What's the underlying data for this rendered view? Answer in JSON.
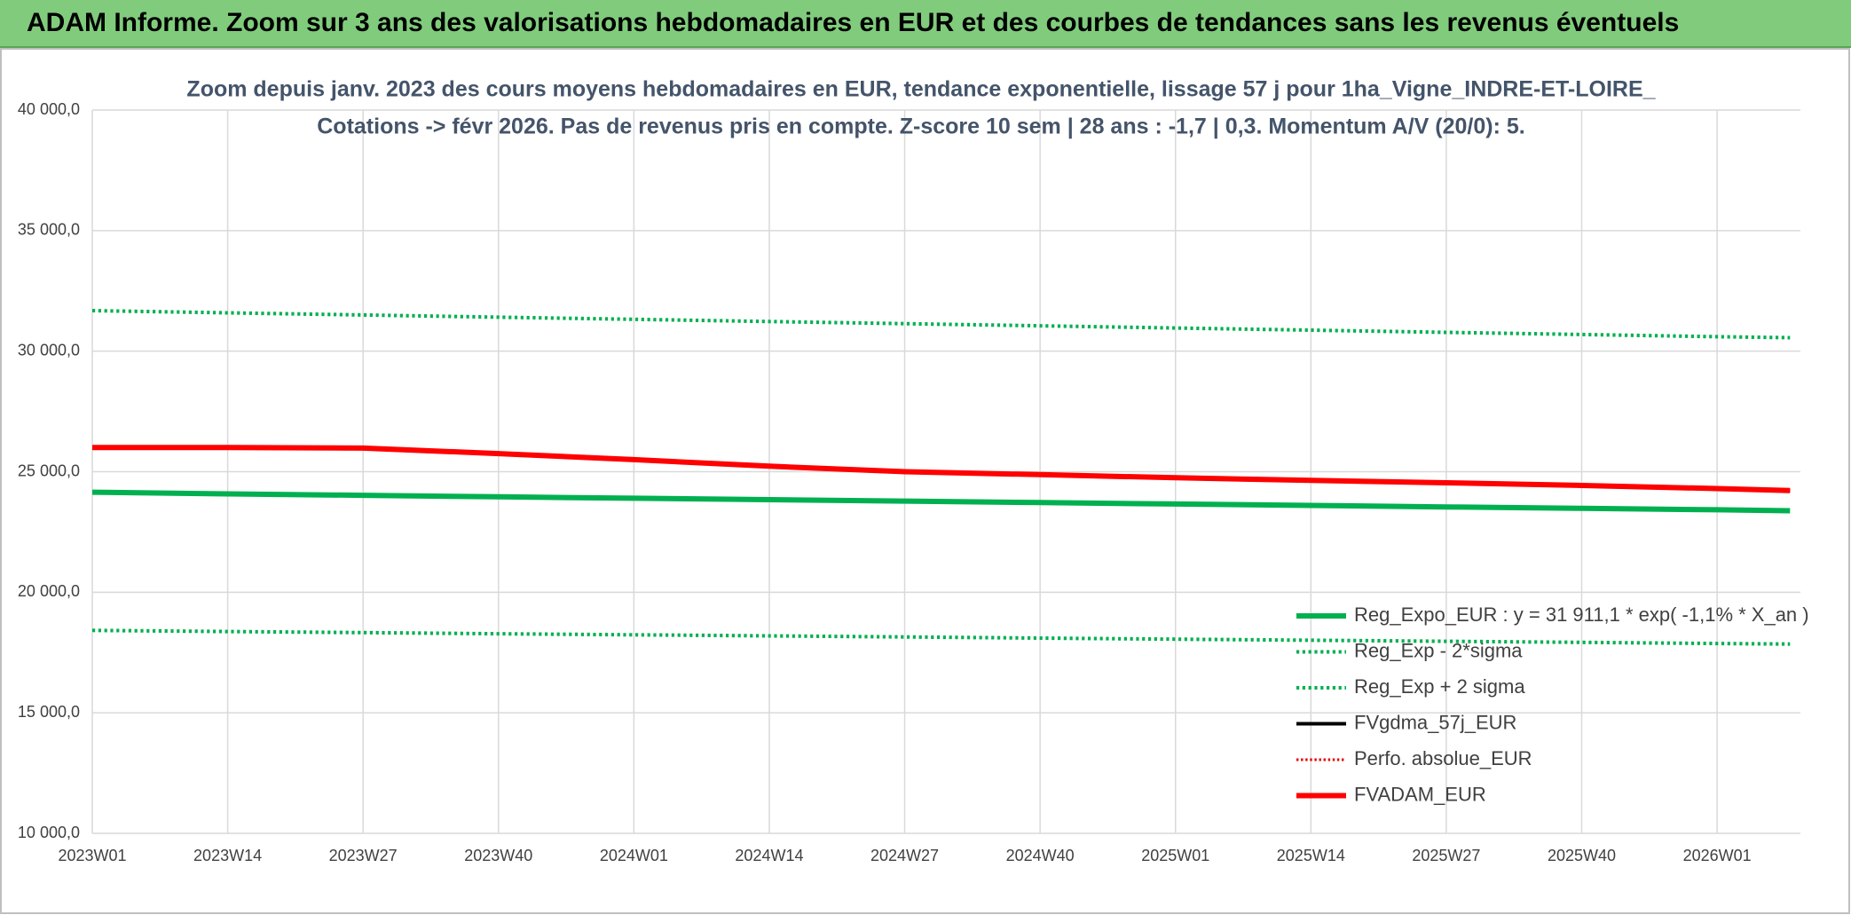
{
  "header": {
    "title": "ADAM Informe. Zoom sur 3 ans des valorisations hebdomadaires en EUR et des courbes de tendances sans les revenus éventuels"
  },
  "chart_data": {
    "type": "line",
    "title": "Zoom depuis janv. 2023 des cours moyens hebdomadaires en EUR, tendance exponentielle, lissage 57 j pour 1ha_Vigne_INDRE-ET-LOIRE_",
    "subtitle": "Cotations -> févr 2026. Pas de revenus pris en compte. Z-score 10 sem | 28 ans : -1,7 | 0,3. Momentum A/V (20/0): 5.",
    "x": [
      0,
      13,
      26,
      39,
      52,
      65,
      78,
      91,
      104,
      117,
      130,
      143,
      156,
      163
    ],
    "xlim": [
      0,
      164
    ],
    "xticks": [
      {
        "value": 0,
        "label": "2023W01"
      },
      {
        "value": 13,
        "label": "2023W14"
      },
      {
        "value": 26,
        "label": "2023W27"
      },
      {
        "value": 39,
        "label": "2023W40"
      },
      {
        "value": 52,
        "label": "2024W01"
      },
      {
        "value": 65,
        "label": "2024W14"
      },
      {
        "value": 78,
        "label": "2024W27"
      },
      {
        "value": 91,
        "label": "2024W40"
      },
      {
        "value": 104,
        "label": "2025W01"
      },
      {
        "value": 117,
        "label": "2025W14"
      },
      {
        "value": 130,
        "label": "2025W27"
      },
      {
        "value": 143,
        "label": "2025W40"
      },
      {
        "value": 156,
        "label": "2026W01"
      }
    ],
    "ylim": [
      10000,
      40000
    ],
    "yticks": [
      {
        "value": 10000,
        "label": "10 000,0"
      },
      {
        "value": 15000,
        "label": "15 000,0"
      },
      {
        "value": 20000,
        "label": "20 000,0"
      },
      {
        "value": 25000,
        "label": "25 000,0"
      },
      {
        "value": 30000,
        "label": "30 000,0"
      },
      {
        "value": 35000,
        "label": "35 000,0"
      },
      {
        "value": 40000,
        "label": "40 000,0"
      }
    ],
    "grid": true,
    "legend": "lower right",
    "series": [
      {
        "name": "Reg_Expo_EUR : y = 31 911,1 * exp( -1,1% *  X_an )",
        "color": "#00b050",
        "style": "solid",
        "width": 6,
        "values": [
          24150,
          24080,
          24020,
          23960,
          23900,
          23840,
          23780,
          23720,
          23660,
          23600,
          23540,
          23480,
          23420,
          23380
        ]
      },
      {
        "name": "Reg_Exp - 2*sigma",
        "color": "#00b050",
        "style": "dotted",
        "width": 4,
        "values": [
          18420,
          18370,
          18325,
          18280,
          18235,
          18190,
          18145,
          18100,
          18055,
          18010,
          17965,
          17920,
          17875,
          17850
        ]
      },
      {
        "name": "Reg_Exp + 2 sigma",
        "color": "#00b050",
        "style": "dotted",
        "width": 4,
        "values": [
          31680,
          31590,
          31500,
          31410,
          31320,
          31230,
          31140,
          31050,
          30960,
          30870,
          30780,
          30690,
          30600,
          30560
        ]
      },
      {
        "name": "FVgdma_57j_EUR",
        "color": "#000000",
        "style": "solid",
        "width": 4,
        "values": [
          26000,
          26000,
          25990,
          25750,
          25500,
          25230,
          25000,
          24880,
          24750,
          24640,
          24540,
          24430,
          24300,
          24220
        ]
      },
      {
        "name": "Perfo. absolue_EUR",
        "color": "#e00000",
        "style": "dotted",
        "width": 3,
        "values": [
          26000,
          26000,
          25980,
          25750,
          25500,
          25230,
          25000,
          24880,
          24750,
          24640,
          24540,
          24430,
          24300,
          24220
        ]
      },
      {
        "name": "FVADAM_EUR",
        "color": "#ff0000",
        "style": "solid",
        "width": 6,
        "values": [
          26000,
          26000,
          25980,
          25750,
          25500,
          25230,
          25000,
          24880,
          24750,
          24640,
          24540,
          24430,
          24300,
          24220
        ]
      }
    ]
  }
}
